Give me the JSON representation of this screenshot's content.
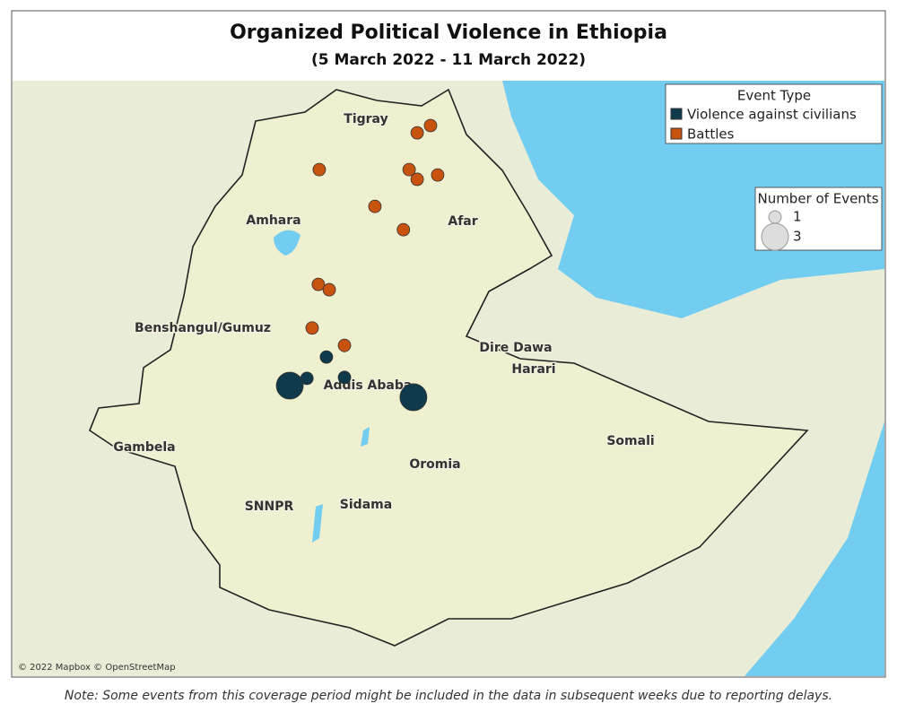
{
  "header": {
    "title": "Organized Political Violence in Ethiopia",
    "subtitle": "(5 March 2022 - 11 March 2022)"
  },
  "regions": [
    "Tigray",
    "Amhara",
    "Afar",
    "Benshangul/Gumuz",
    "Dire Dawa",
    "Harari",
    "Addis Ababa",
    "Gambela",
    "Somali",
    "Oromia",
    "SNNPR",
    "Sidama"
  ],
  "legend": {
    "type_title": "Event Type",
    "size_title": "Number of Events",
    "sizes": [
      1,
      3
    ]
  },
  "event_types": [
    {
      "name": "Violence against civilians",
      "color": "#0e3a4c"
    },
    {
      "name": "Battles",
      "color": "#c8530f"
    }
  ],
  "events": [
    {
      "type": 1,
      "lon": 40.06,
      "lat": 14.4,
      "count": 1
    },
    {
      "type": 1,
      "lon": 39.78,
      "lat": 14.25,
      "count": 1
    },
    {
      "type": 1,
      "lon": 37.72,
      "lat": 13.49,
      "count": 1
    },
    {
      "type": 1,
      "lon": 39.61,
      "lat": 13.49,
      "count": 1
    },
    {
      "type": 1,
      "lon": 39.78,
      "lat": 13.29,
      "count": 1
    },
    {
      "type": 1,
      "lon": 40.21,
      "lat": 13.38,
      "count": 1
    },
    {
      "type": 1,
      "lon": 38.89,
      "lat": 12.73,
      "count": 1
    },
    {
      "type": 1,
      "lon": 39.49,
      "lat": 12.25,
      "count": 1
    },
    {
      "type": 1,
      "lon": 37.7,
      "lat": 11.12,
      "count": 1
    },
    {
      "type": 1,
      "lon": 37.93,
      "lat": 11.01,
      "count": 1
    },
    {
      "type": 1,
      "lon": 37.57,
      "lat": 10.22,
      "count": 1
    },
    {
      "type": 1,
      "lon": 38.25,
      "lat": 9.86,
      "count": 1
    },
    {
      "type": 0,
      "lon": 37.87,
      "lat": 9.62,
      "count": 1
    },
    {
      "type": 0,
      "lon": 37.46,
      "lat": 9.18,
      "count": 1
    },
    {
      "type": 0,
      "lon": 38.25,
      "lat": 9.2,
      "count": 1
    },
    {
      "type": 0,
      "lon": 37.1,
      "lat": 9.03,
      "count": 3
    },
    {
      "type": 0,
      "lon": 39.7,
      "lat": 8.79,
      "count": 3
    }
  ],
  "attribution": "© 2022 Mapbox © OpenStreetMap",
  "note": "Note: Some events from this coverage period might be included in the data in subsequent weeks due to reporting delays."
}
